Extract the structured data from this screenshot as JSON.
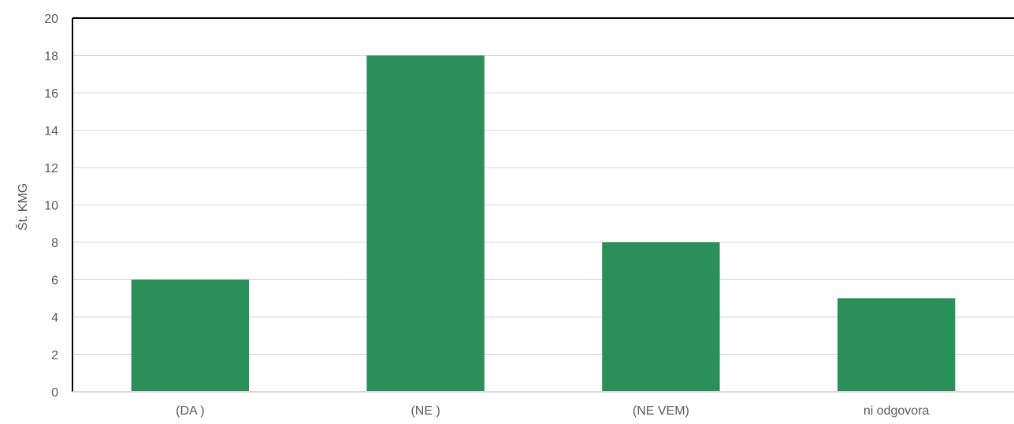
{
  "chart_data": {
    "type": "bar",
    "title": "",
    "xlabel": "",
    "ylabel": "Št. KMG",
    "categories": [
      "(DA )",
      "(NE )",
      "(NE VEM)",
      "ni odgovora"
    ],
    "values": [
      6,
      18,
      8,
      5
    ],
    "ylim": [
      0,
      20
    ],
    "yticks": [
      0,
      2,
      4,
      6,
      8,
      10,
      12,
      14,
      16,
      18,
      20
    ],
    "grid": true,
    "legend": "none",
    "bar_color": "#2a8f58",
    "grid_color": "#d9d9d9",
    "axis_color": "#000000"
  }
}
